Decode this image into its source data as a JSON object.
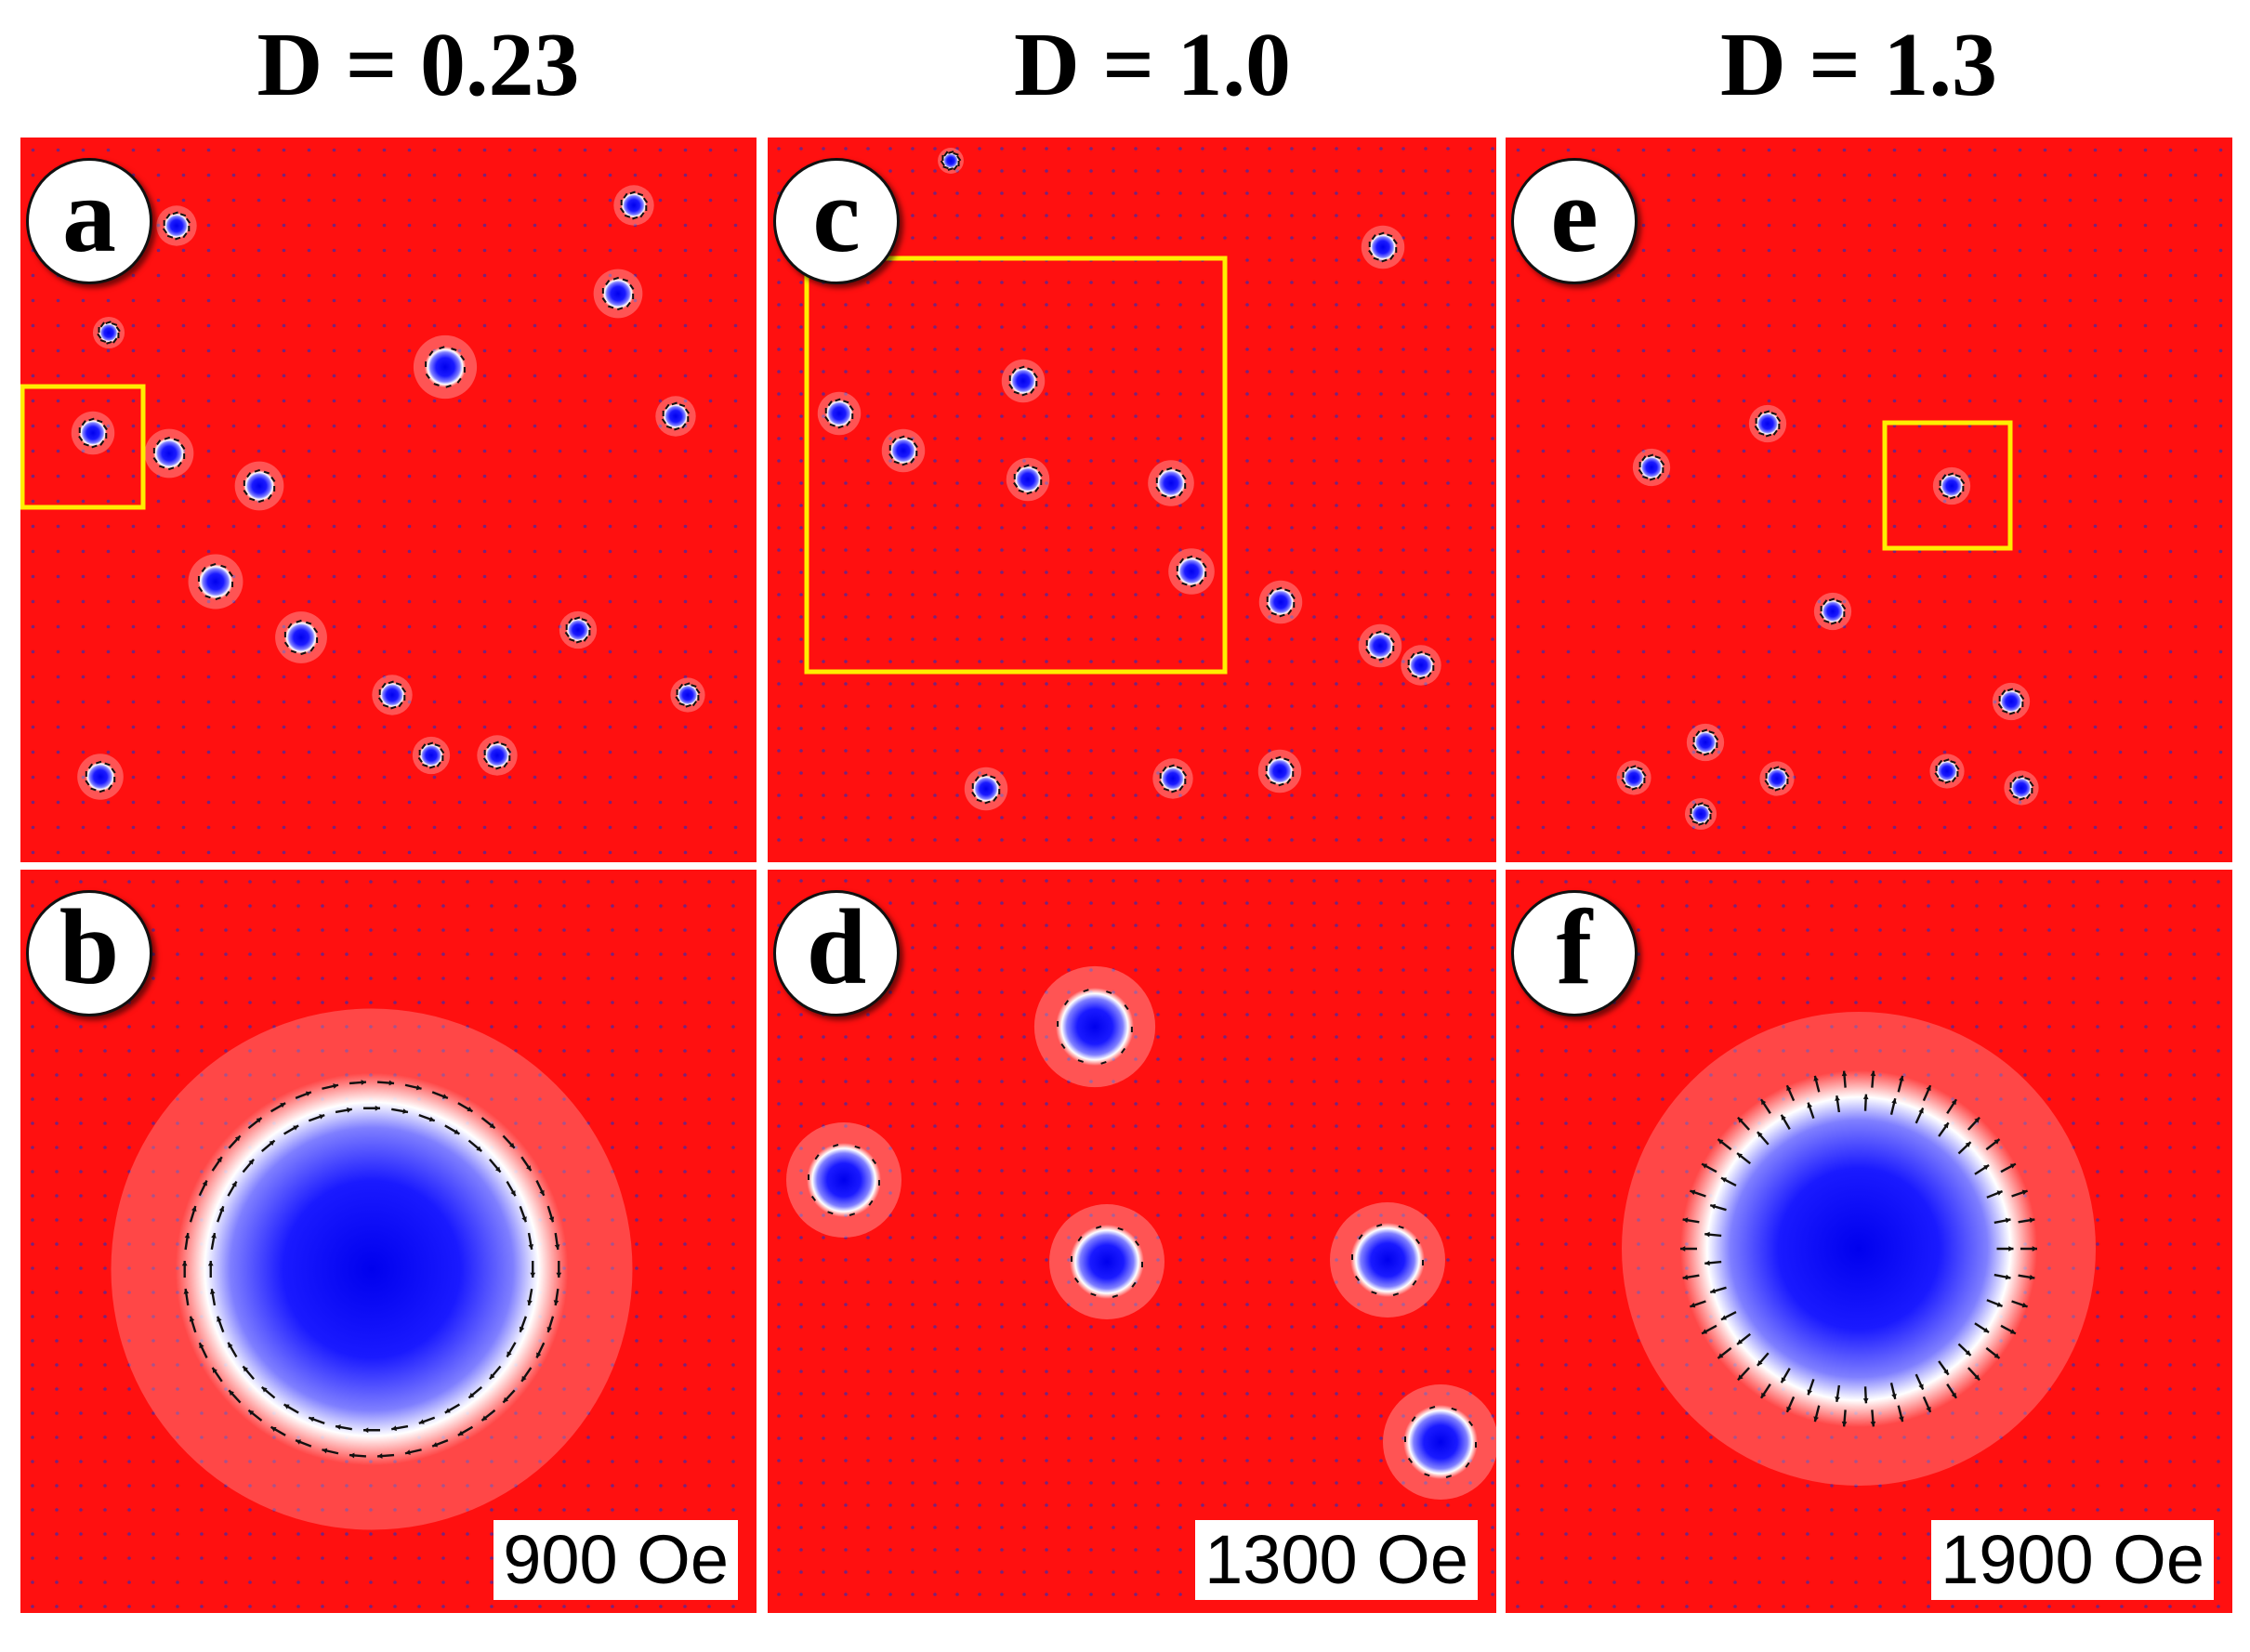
{
  "columns": [
    {
      "title": "D = 0.23"
    },
    {
      "title": "D = 1.0"
    },
    {
      "title": "D = 1.3"
    }
  ],
  "panels": {
    "a": {
      "label": "a"
    },
    "b": {
      "label": "b",
      "field": "900 Oe"
    },
    "c": {
      "label": "c"
    },
    "d": {
      "label": "d",
      "field": "1300 Oe"
    },
    "e": {
      "label": "e"
    },
    "f": {
      "label": "f",
      "field": "1900 Oe"
    }
  },
  "colors": {
    "background_magnetization": "#ff1010",
    "skyrmion_core": "#1a1aff",
    "highlight_box": "#ffee00",
    "arrow": "#111111"
  }
}
